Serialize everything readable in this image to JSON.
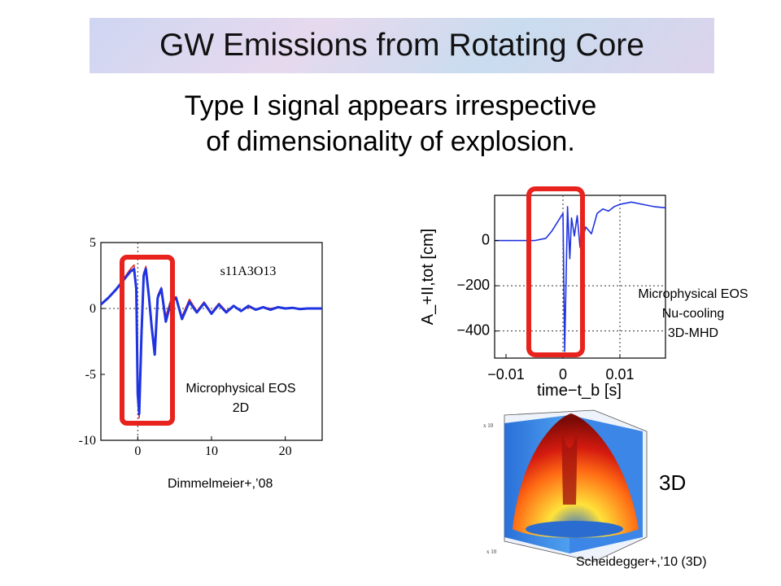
{
  "slide": {
    "title": "GW Emissions from Rotating Core",
    "subtitle_line1": "Type I signal appears irrespective",
    "subtitle_line2": "of dimensionality of explosion."
  },
  "left_panel": {
    "annotation_line1": "Microphysical EOS",
    "annotation_line2": "2D",
    "citation": "Dimmelmeier+,’08"
  },
  "right_panel": {
    "annotation_line1": "Microphysical EOS",
    "annotation_line2": "Nu-cooling",
    "annotation_line3": "3D-MHD",
    "label_3d": "3D",
    "citation": "Scheidegger+,’10  (3D)"
  },
  "colors": {
    "highlight": "#e8221c",
    "series_blue": "#1f33e0",
    "series_red": "#e8221c"
  },
  "chart_data": [
    {
      "type": "line",
      "title": "s11A3O13",
      "xlabel": "",
      "ylabel": "",
      "xlim": [
        -5,
        25
      ],
      "ylim": [
        -10,
        5
      ],
      "xticks": [
        "0",
        "10",
        "20"
      ],
      "yticks": [
        "5",
        "0",
        "-5",
        "-10"
      ],
      "series": [
        {
          "x": [
            -5,
            -4,
            -3,
            -2,
            -1,
            -0.5,
            -0.2,
            0,
            0.2,
            0.5,
            0.8,
            1.1,
            1.5,
            1.9,
            2.3,
            2.7,
            3.2,
            3.8,
            4.5,
            5.2,
            6,
            7,
            8,
            9,
            10,
            11,
            12,
            13,
            14,
            15,
            16,
            17,
            18,
            19,
            20,
            21,
            22,
            23,
            24,
            25
          ],
          "values": [
            0.3,
            0.8,
            1.4,
            2.1,
            2.8,
            3.0,
            1.5,
            -6.5,
            -8.0,
            -2.0,
            2.5,
            3.0,
            1.0,
            -1.5,
            -3.5,
            0.8,
            1.5,
            -1.0,
            0.5,
            0.8,
            -0.8,
            0.5,
            -0.3,
            0.4,
            -0.4,
            0.3,
            -0.3,
            0.2,
            -0.2,
            0.2,
            -0.1,
            0.1,
            -0.1,
            0.1,
            0.0,
            0.05,
            -0.05,
            0.0,
            0.0,
            0.0
          ]
        },
        {
          "x": [
            -5,
            -4,
            -3,
            -2,
            -1,
            -0.5,
            -0.2,
            0,
            0.2,
            0.5,
            0.8,
            1.1,
            1.5,
            1.9,
            2.3,
            2.7,
            3.2,
            3.8,
            4.5,
            5.2,
            6,
            7,
            8,
            9,
            10,
            11,
            12,
            13,
            14,
            15,
            16,
            17,
            18,
            19,
            20,
            21,
            22,
            23,
            24,
            25
          ],
          "values": [
            0.3,
            0.8,
            1.4,
            2.2,
            3.0,
            3.3,
            1.5,
            -7.0,
            -8.3,
            -2.0,
            2.7,
            3.2,
            1.2,
            -1.2,
            -3.0,
            1.0,
            1.6,
            -0.6,
            0.7,
            0.9,
            -0.6,
            0.7,
            -0.2,
            0.5,
            -0.3,
            0.4,
            -0.2,
            0.2,
            -0.2,
            0.1,
            -0.1,
            0.1,
            0.0,
            0.1,
            0.0,
            0.05,
            0.0,
            0.0,
            0.0,
            0.0
          ]
        }
      ]
    },
    {
      "type": "line",
      "title": "",
      "xlabel": "time−t_b [s]",
      "ylabel": "A_+II,tot [cm]",
      "xlim": [
        -0.012,
        0.018
      ],
      "ylim": [
        -520,
        200
      ],
      "xticks": [
        "−0.01",
        "0",
        "0.01"
      ],
      "yticks": [
        "0",
        "−200",
        "−400"
      ],
      "series": [
        {
          "x": [
            -0.012,
            -0.008,
            -0.005,
            -0.003,
            -0.002,
            -0.001,
            0.0,
            0.0003,
            0.0008,
            0.0012,
            0.0015,
            0.002,
            0.0025,
            0.003,
            0.004,
            0.005,
            0.006,
            0.007,
            0.008,
            0.009,
            0.01,
            0.012,
            0.014,
            0.016,
            0.018
          ],
          "values": [
            0,
            0,
            0,
            10,
            40,
            80,
            120,
            -490,
            150,
            -80,
            100,
            20,
            110,
            -30,
            60,
            30,
            120,
            140,
            130,
            150,
            160,
            170,
            160,
            150,
            145
          ]
        }
      ]
    }
  ]
}
